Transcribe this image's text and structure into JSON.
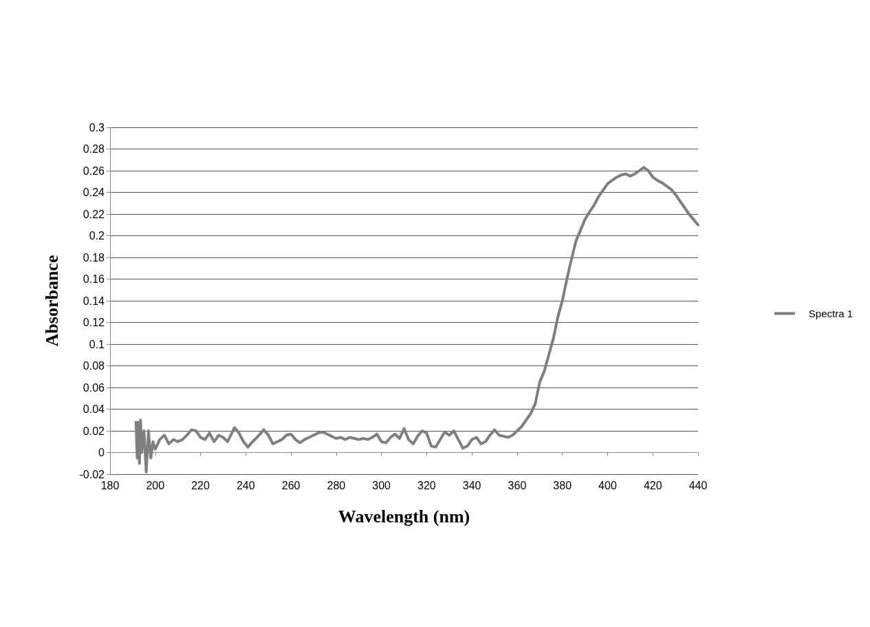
{
  "chart_data": {
    "type": "line",
    "xlabel": "Wavelength (nm)",
    "ylabel": "Absorbance",
    "xlim": [
      180,
      440
    ],
    "xticks": [
      180,
      200,
      220,
      240,
      260,
      280,
      300,
      320,
      340,
      360,
      380,
      400,
      420,
      440
    ],
    "ylim": [
      -0.02,
      0.3
    ],
    "yticks": [
      -0.02,
      0,
      0.02,
      0.04,
      0.06,
      0.08,
      0.1,
      0.12,
      0.14,
      0.16,
      0.18,
      0.2,
      0.22,
      0.24,
      0.26,
      0.28,
      0.3
    ],
    "grid": "y",
    "legend": "right",
    "marker": "none",
    "line_style": "solid",
    "series": [
      {
        "name": "Spectra 1",
        "color": "#7f7f7f",
        "x": [
          191.5,
          192,
          192.5,
          193,
          193.5,
          194,
          195,
          196,
          197,
          198,
          199,
          200,
          202,
          204,
          206,
          208,
          210,
          212,
          214,
          216,
          218,
          220,
          222,
          224,
          226,
          228,
          230,
          232,
          235,
          237,
          239,
          241,
          243,
          245,
          248,
          250,
          252,
          254,
          256,
          258,
          260,
          262,
          264,
          266,
          268,
          270,
          272,
          274,
          276,
          278,
          280,
          282,
          284,
          286,
          288,
          290,
          292,
          294,
          296,
          298,
          300,
          302,
          304,
          306,
          308,
          310,
          312,
          314,
          316,
          318,
          320,
          322,
          324,
          326,
          328,
          330,
          332,
          334,
          336,
          338,
          340,
          342,
          344,
          346,
          348,
          350,
          352,
          354,
          356,
          358,
          360,
          362,
          364,
          366,
          368,
          370,
          372,
          374,
          376,
          378,
          380,
          382,
          384,
          386,
          388,
          390,
          392,
          394,
          396,
          398,
          400,
          402,
          404,
          406,
          408,
          410,
          412,
          414,
          416,
          418,
          420,
          422,
          424,
          426,
          428,
          430,
          432,
          434,
          436,
          438,
          440
        ],
        "values": [
          0.028,
          -0.005,
          0.028,
          -0.01,
          0.03,
          0.0,
          0.02,
          -0.018,
          0.02,
          -0.005,
          0.01,
          0.003,
          0.012,
          0.016,
          0.008,
          0.012,
          0.01,
          0.012,
          0.016,
          0.021,
          0.02,
          0.014,
          0.012,
          0.018,
          0.01,
          0.016,
          0.014,
          0.01,
          0.023,
          0.018,
          0.01,
          0.005,
          0.01,
          0.014,
          0.021,
          0.016,
          0.008,
          0.01,
          0.012,
          0.016,
          0.017,
          0.012,
          0.009,
          0.012,
          0.014,
          0.016,
          0.018,
          0.019,
          0.017,
          0.015,
          0.013,
          0.014,
          0.012,
          0.014,
          0.013,
          0.012,
          0.013,
          0.012,
          0.014,
          0.017,
          0.01,
          0.009,
          0.014,
          0.017,
          0.013,
          0.022,
          0.012,
          0.008,
          0.015,
          0.02,
          0.018,
          0.006,
          0.005,
          0.012,
          0.019,
          0.016,
          0.02,
          0.012,
          0.004,
          0.006,
          0.012,
          0.014,
          0.008,
          0.01,
          0.016,
          0.021,
          0.016,
          0.015,
          0.014,
          0.016,
          0.02,
          0.024,
          0.03,
          0.036,
          0.045,
          0.065,
          0.075,
          0.09,
          0.105,
          0.125,
          0.14,
          0.16,
          0.178,
          0.195,
          0.205,
          0.215,
          0.222,
          0.228,
          0.236,
          0.242,
          0.248,
          0.251,
          0.254,
          0.256,
          0.257,
          0.255,
          0.257,
          0.26,
          0.263,
          0.26,
          0.254,
          0.251,
          0.249,
          0.246,
          0.243,
          0.238,
          0.232,
          0.226,
          0.22,
          0.215,
          0.21
        ]
      }
    ]
  }
}
